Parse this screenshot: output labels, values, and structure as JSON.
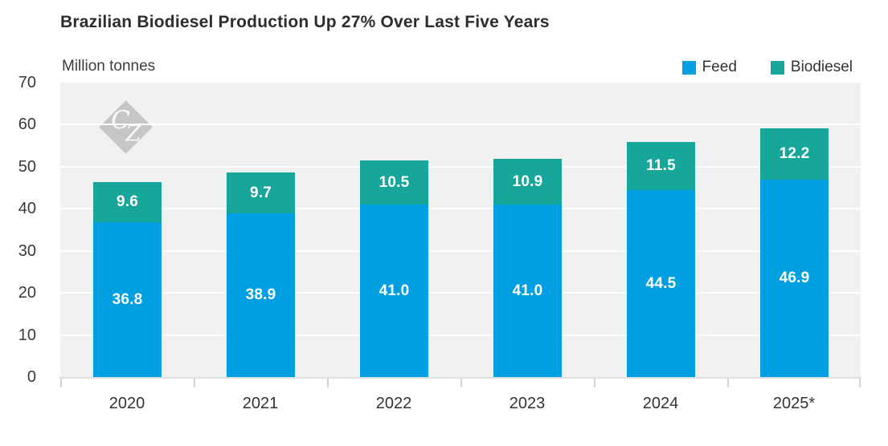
{
  "title": "Brazilian Biodiesel Production Up 27% Over Last Five Years",
  "units_label": "Million tonnes",
  "watermark": {
    "letters": [
      "C",
      "Z"
    ]
  },
  "legend": {
    "items": [
      {
        "label": "Feed",
        "color": "#009FE1"
      },
      {
        "label": "Biodiesel",
        "color": "#17A79A"
      }
    ]
  },
  "colors": {
    "plot_background": "#f1f1f2",
    "gridline": "#ffffff",
    "axis_line": "#dedede",
    "tick": "#d4d4d4",
    "watermark_gray": "#c6c6c6",
    "feed_blue": "#009FE1",
    "biodiesel_teal": "#17A79A"
  },
  "chart_data": {
    "type": "bar",
    "stacked": true,
    "title": "Brazilian Biodiesel Production Up 27% Over Last Five Years",
    "categories": [
      "2020",
      "2021",
      "2022",
      "2023",
      "2024",
      "2025*"
    ],
    "series": [
      {
        "name": "Feed",
        "color": "#009FE1",
        "values": [
          36.8,
          38.9,
          41.0,
          41.0,
          44.5,
          46.9
        ]
      },
      {
        "name": "Biodiesel",
        "color": "#17A79A",
        "values": [
          9.6,
          9.7,
          10.5,
          10.9,
          11.5,
          12.2
        ]
      }
    ],
    "xlabel": "",
    "ylabel": "Million tonnes",
    "ylim": [
      0,
      70
    ],
    "yticks": [
      0,
      10,
      20,
      30,
      40,
      50,
      60,
      70
    ],
    "grid": true,
    "legend_position": "top-right",
    "value_labels": "one-decimal-inside-segments"
  }
}
